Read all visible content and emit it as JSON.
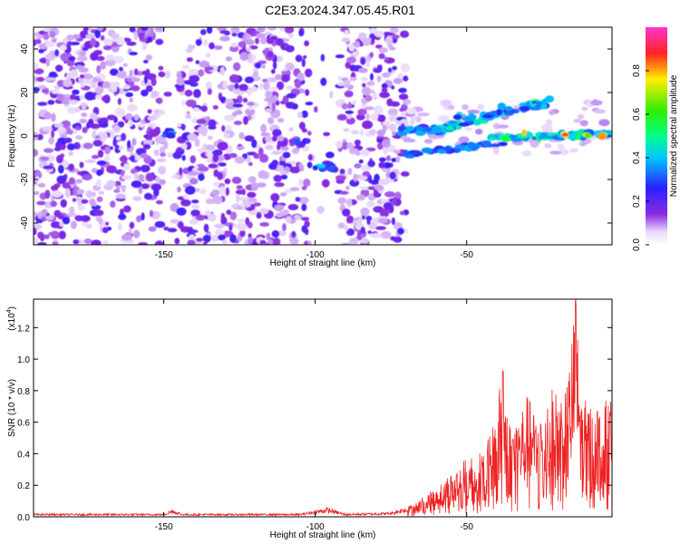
{
  "title": "C2E3.2024.347.05.45.R01",
  "chart_data": [
    {
      "type": "heatmap",
      "xlabel": "Height of straight line (km)",
      "ylabel": "Frequency (Hz)",
      "xlim": [
        -193,
        -2
      ],
      "ylim": [
        -50,
        50
      ],
      "x_ticks": [
        -150,
        -100,
        -50
      ],
      "y_ticks": [
        -40,
        -20,
        0,
        20,
        40
      ],
      "colorbar": {
        "label": "Normalized spectral amplitude",
        "range": [
          0,
          1
        ],
        "ticks": [
          "0.0",
          "0.2",
          "0.4",
          "0.6",
          "0.8"
        ],
        "tick_values": [
          0,
          0.2,
          0.4,
          0.6,
          0.8
        ]
      },
      "features": [
        {
          "name": "broadband noise",
          "x_range": [
            -193,
            -70
          ],
          "freq_range": [
            -50,
            50
          ],
          "amplitude": 0.15
        },
        {
          "name": "echo",
          "x": -148,
          "freq": 2,
          "amplitude": 0.45
        },
        {
          "name": "echo",
          "x": -105,
          "freq": -3,
          "amplitude": 0.35
        },
        {
          "name": "echo",
          "x": -97,
          "freq": -14,
          "amplitude": 0.45
        },
        {
          "name": "rising trace",
          "x_range": [
            -70,
            -25
          ],
          "freq_range": [
            0,
            14
          ],
          "amplitude": 0.45
        },
        {
          "name": "falling trace",
          "x_range": [
            -72,
            -40
          ],
          "freq_range": [
            -8,
            -2
          ],
          "amplitude": 0.4
        },
        {
          "name": "strong trace",
          "x_range": [
            -40,
            -2
          ],
          "freq_range": [
            0,
            2
          ],
          "amplitude": 0.95
        }
      ]
    },
    {
      "type": "line",
      "xlabel": "Height of straight line (km)",
      "ylabel": "SNR (10 * v/v)",
      "multiplier": "(x10",
      "multiplier_exp": "4",
      "multiplier_close": ")",
      "xlim": [
        -193,
        -2
      ],
      "ylim": [
        0,
        1.38
      ],
      "x_ticks": [
        -150,
        -100,
        -50
      ],
      "y_ticks": [
        "0.0",
        "0.2",
        "0.4",
        "0.6",
        "0.8",
        "1.0",
        "1.2"
      ],
      "y_tick_values": [
        0,
        0.2,
        0.4,
        0.6,
        0.8,
        1.0,
        1.2
      ],
      "series": [
        {
          "name": "SNR",
          "color": "#ee2222",
          "envelope_points": [
            [
              -193,
              0.02
            ],
            [
              -150,
              0.02
            ],
            [
              -147,
              0.05
            ],
            [
              -144,
              0.02
            ],
            [
              -105,
              0.02
            ],
            [
              -96,
              0.06
            ],
            [
              -90,
              0.02
            ],
            [
              -75,
              0.03
            ],
            [
              -68,
              0.08
            ],
            [
              -62,
              0.16
            ],
            [
              -58,
              0.24
            ],
            [
              -54,
              0.3
            ],
            [
              -50,
              0.38
            ],
            [
              -45,
              0.45
            ],
            [
              -42,
              0.52
            ],
            [
              -40,
              0.74
            ],
            [
              -38,
              0.93
            ],
            [
              -36,
              0.62
            ],
            [
              -33,
              0.66
            ],
            [
              -30,
              0.78
            ],
            [
              -27,
              0.65
            ],
            [
              -23,
              0.83
            ],
            [
              -20,
              0.8
            ],
            [
              -17,
              0.82
            ],
            [
              -14,
              1.38
            ],
            [
              -12,
              0.76
            ],
            [
              -9,
              0.72
            ],
            [
              -6,
              0.75
            ],
            [
              -2,
              0.74
            ]
          ]
        }
      ]
    }
  ]
}
